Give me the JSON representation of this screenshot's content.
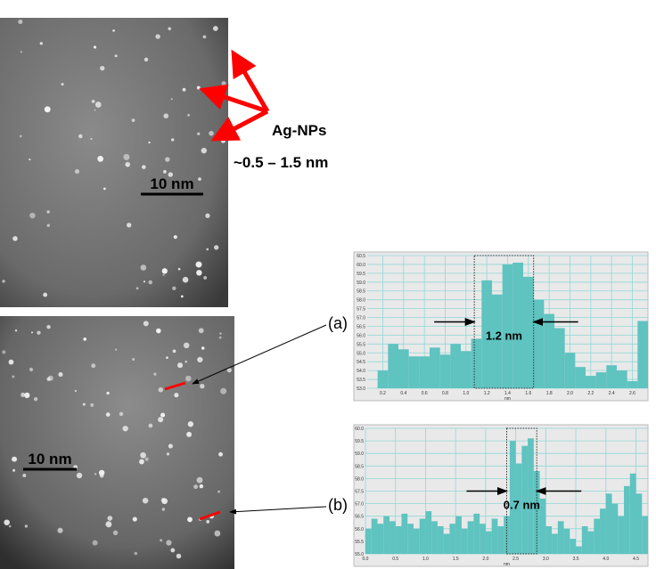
{
  "figure": {
    "ag_label": "Ag-NPs",
    "size_label": "~0.5 – 1.5 nm",
    "scale_top": "10 nm",
    "scale_bottom": "10 nm",
    "label_a": "(a)",
    "label_b": "(b)"
  },
  "chart_data": [
    {
      "type": "histogram",
      "color": "#5fc3c0",
      "grid": true,
      "xlabel": "nm",
      "bins": [
        0.15,
        0.25,
        0.35,
        0.45,
        0.55,
        0.65,
        0.75,
        0.85,
        0.95,
        1.05,
        1.15,
        1.25,
        1.35,
        1.45,
        1.55,
        1.65,
        1.75,
        1.85,
        1.95,
        2.05,
        2.15,
        2.25,
        2.35,
        2.45,
        2.55,
        2.65,
        2.75
      ],
      "values": [
        54.0,
        55.5,
        55.2,
        54.8,
        54.8,
        55.3,
        54.9,
        55.5,
        55.1,
        55.8,
        59.1,
        58.3,
        60.0,
        60.1,
        59.3,
        58.0,
        57.2,
        56.4,
        55.0,
        54.2,
        53.7,
        53.9,
        54.3,
        54.0,
        53.4,
        56.8
      ],
      "xlim": [
        0.05,
        2.75
      ],
      "xticks": [
        0.2,
        0.4,
        0.6,
        0.8,
        {
          "value": 1,
          "label": "1.0"
        },
        1.2,
        1.4,
        1.6,
        1.8,
        {
          "value": 2,
          "label": "2.0"
        },
        2.2,
        2.4,
        2.6
      ],
      "ylim": [
        53,
        60.5
      ],
      "yticks": [
        {
          "value": 53,
          "label": "53.0"
        },
        53.5,
        {
          "value": 54,
          "label": "54.0"
        },
        54.5,
        {
          "value": 55,
          "label": "55.0"
        },
        55.5,
        {
          "value": 56,
          "label": "56.0"
        },
        56.5,
        {
          "value": 57,
          "label": "57.0"
        },
        57.5,
        {
          "value": 58,
          "label": "58.0"
        },
        58.5,
        {
          "value": 59,
          "label": "59.0"
        },
        59.5,
        {
          "value": 60,
          "label": "60.0"
        },
        60.5
      ],
      "highlight": [
        1.08,
        1.65
      ],
      "annotation": "1.2 nm"
    },
    {
      "type": "histogram",
      "color": "#5fc3c0",
      "grid": true,
      "xlabel": "nm",
      "bins": [
        0.0,
        0.1,
        0.2,
        0.3,
        0.4,
        0.5,
        0.6,
        0.7,
        0.8,
        0.9,
        1.0,
        1.1,
        1.2,
        1.3,
        1.4,
        1.5,
        1.6,
        1.7,
        1.8,
        1.9,
        2.0,
        2.1,
        2.2,
        2.3,
        2.4,
        2.5,
        2.6,
        2.7,
        2.8,
        2.9,
        3.0,
        3.1,
        3.2,
        3.3,
        3.4,
        3.5,
        3.6,
        3.7,
        3.8,
        3.9,
        4.0,
        4.1,
        4.2,
        4.3,
        4.4,
        4.5,
        4.6,
        4.7
      ],
      "values": [
        56.0,
        56.4,
        56.2,
        56.5,
        56.3,
        56.1,
        56.6,
        56.2,
        56.0,
        56.4,
        56.7,
        56.3,
        56.1,
        55.8,
        56.2,
        56.5,
        56.0,
        56.3,
        56.6,
        56.2,
        55.9,
        56.4,
        56.1,
        56.5,
        59.5,
        58.6,
        59.3,
        59.6,
        58.3,
        57.2,
        56.1,
        55.8,
        56.3,
        56.0,
        55.6,
        55.3,
        56.1,
        55.9,
        56.4,
        56.8,
        57.4,
        57.0,
        56.5,
        57.7,
        58.2,
        57.4,
        56.5
      ],
      "xlim": [
        0,
        4.7
      ],
      "xticks": [
        {
          "value": 0,
          "label": "0.0"
        },
        0.5,
        {
          "value": 1,
          "label": "1.0"
        },
        1.5,
        {
          "value": 2,
          "label": "2.0"
        },
        2.5,
        {
          "value": 3,
          "label": "3.0"
        },
        3.5,
        {
          "value": 4,
          "label": "4.0"
        },
        4.5
      ],
      "ylim": [
        55,
        60
      ],
      "yticks": [
        {
          "value": 55,
          "label": "55.0"
        },
        55.5,
        {
          "value": 56,
          "label": "56.0"
        },
        56.5,
        {
          "value": 57,
          "label": "57.0"
        },
        57.5,
        {
          "value": 58,
          "label": "58.0"
        },
        58.5,
        {
          "value": 59,
          "label": "59.0"
        },
        59.5,
        {
          "value": 60,
          "label": "60.0"
        }
      ],
      "highlight": [
        2.35,
        2.85
      ],
      "annotation": "0.7 nm"
    }
  ]
}
